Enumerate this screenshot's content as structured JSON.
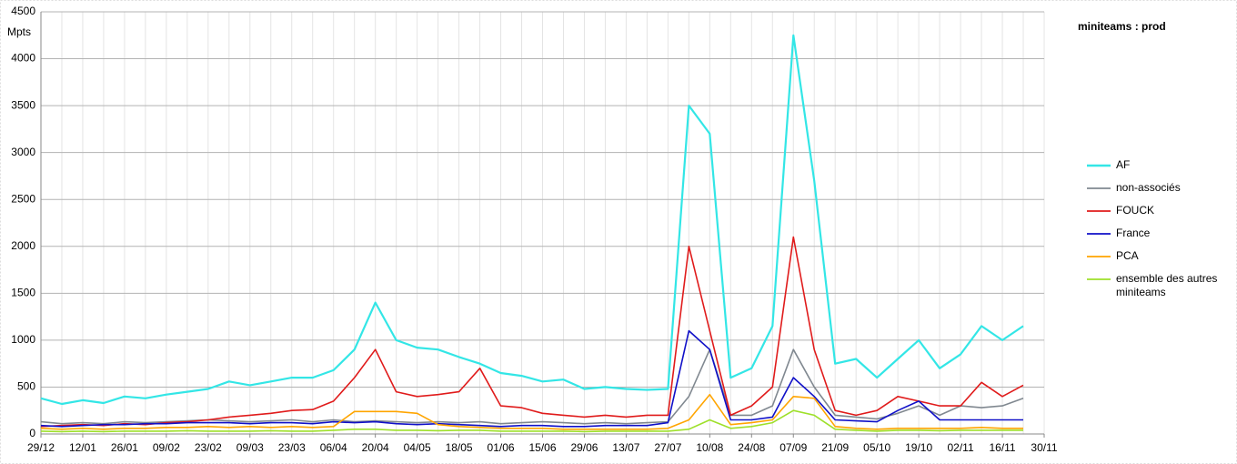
{
  "chart_data": {
    "type": "line",
    "title": "miniteams : prod",
    "y_label": "Mpts",
    "categories": [
      "29/12",
      null,
      "12/01",
      null,
      "26/01",
      null,
      "09/02",
      null,
      "23/02",
      null,
      "09/03",
      null,
      "23/03",
      null,
      "06/04",
      null,
      "20/04",
      null,
      "04/05",
      null,
      "18/05",
      null,
      "01/06",
      null,
      "15/06",
      null,
      "29/06",
      null,
      "13/07",
      null,
      "27/07",
      null,
      "10/08",
      null,
      "24/08",
      null,
      "07/09",
      null,
      "21/09",
      null,
      "05/10",
      null,
      "19/10",
      null,
      "02/11",
      null,
      "16/11",
      null,
      "30/11"
    ],
    "ylim": [
      0,
      4500
    ],
    "yticks": [
      0,
      500,
      1000,
      1500,
      2000,
      2500,
      3000,
      3500,
      4000,
      4500
    ],
    "grid": true,
    "series": [
      {
        "name": "AF",
        "color": "#33e6e6",
        "values": [
          380,
          320,
          360,
          330,
          400,
          380,
          420,
          450,
          480,
          560,
          520,
          560,
          600,
          600,
          680,
          900,
          1400,
          1000,
          920,
          900,
          820,
          750,
          650,
          620,
          560,
          580,
          480,
          500,
          480,
          470,
          480,
          3500,
          3200,
          600,
          700,
          1150,
          4250,
          2700,
          750,
          800,
          600,
          800,
          1000,
          700,
          850,
          1150,
          1000,
          1150,
          null
        ]
      },
      {
        "name": "non-associés",
        "color": "#808890",
        "values": [
          130,
          110,
          120,
          110,
          130,
          120,
          130,
          140,
          150,
          140,
          130,
          140,
          150,
          130,
          150,
          130,
          140,
          130,
          120,
          130,
          120,
          130,
          110,
          120,
          130,
          120,
          110,
          120,
          110,
          120,
          130,
          400,
          900,
          200,
          200,
          300,
          900,
          500,
          200,
          180,
          160,
          220,
          300,
          200,
          300,
          280,
          300,
          380,
          null
        ]
      },
      {
        "name": "FOUCK",
        "color": "#e01b1b",
        "values": [
          80,
          90,
          100,
          90,
          110,
          100,
          120,
          130,
          150,
          180,
          200,
          220,
          250,
          260,
          350,
          600,
          900,
          450,
          400,
          420,
          450,
          700,
          300,
          280,
          220,
          200,
          180,
          200,
          180,
          200,
          200,
          2000,
          1100,
          200,
          300,
          500,
          2100,
          900,
          250,
          200,
          250,
          400,
          350,
          300,
          300,
          550,
          400,
          520,
          null
        ]
      },
      {
        "name": "France",
        "color": "#1010c8",
        "values": [
          90,
          80,
          90,
          100,
          100,
          110,
          110,
          120,
          120,
          120,
          110,
          120,
          120,
          110,
          130,
          120,
          130,
          110,
          100,
          110,
          100,
          90,
          80,
          90,
          90,
          80,
          80,
          90,
          90,
          90,
          120,
          1100,
          900,
          150,
          150,
          180,
          600,
          400,
          150,
          140,
          130,
          250,
          350,
          150,
          150,
          150,
          150,
          150,
          null
        ]
      },
      {
        "name": "PCA",
        "color": "#ffa500",
        "values": [
          60,
          50,
          60,
          50,
          60,
          60,
          70,
          70,
          80,
          70,
          80,
          70,
          80,
          70,
          80,
          240,
          240,
          240,
          220,
          100,
          80,
          70,
          60,
          60,
          60,
          50,
          50,
          50,
          50,
          50,
          60,
          150,
          420,
          100,
          120,
          150,
          400,
          380,
          80,
          60,
          50,
          60,
          60,
          60,
          60,
          70,
          60,
          60,
          null
        ]
      },
      {
        "name": "ensemble des autres miniteams",
        "color": "#9ee02a",
        "values": [
          30,
          25,
          30,
          25,
          30,
          30,
          30,
          35,
          30,
          30,
          30,
          35,
          30,
          30,
          40,
          50,
          50,
          40,
          40,
          35,
          40,
          40,
          30,
          30,
          30,
          30,
          25,
          30,
          30,
          30,
          30,
          50,
          150,
          60,
          80,
          120,
          250,
          200,
          50,
          40,
          30,
          40,
          40,
          35,
          40,
          40,
          40,
          40,
          null
        ]
      }
    ]
  }
}
